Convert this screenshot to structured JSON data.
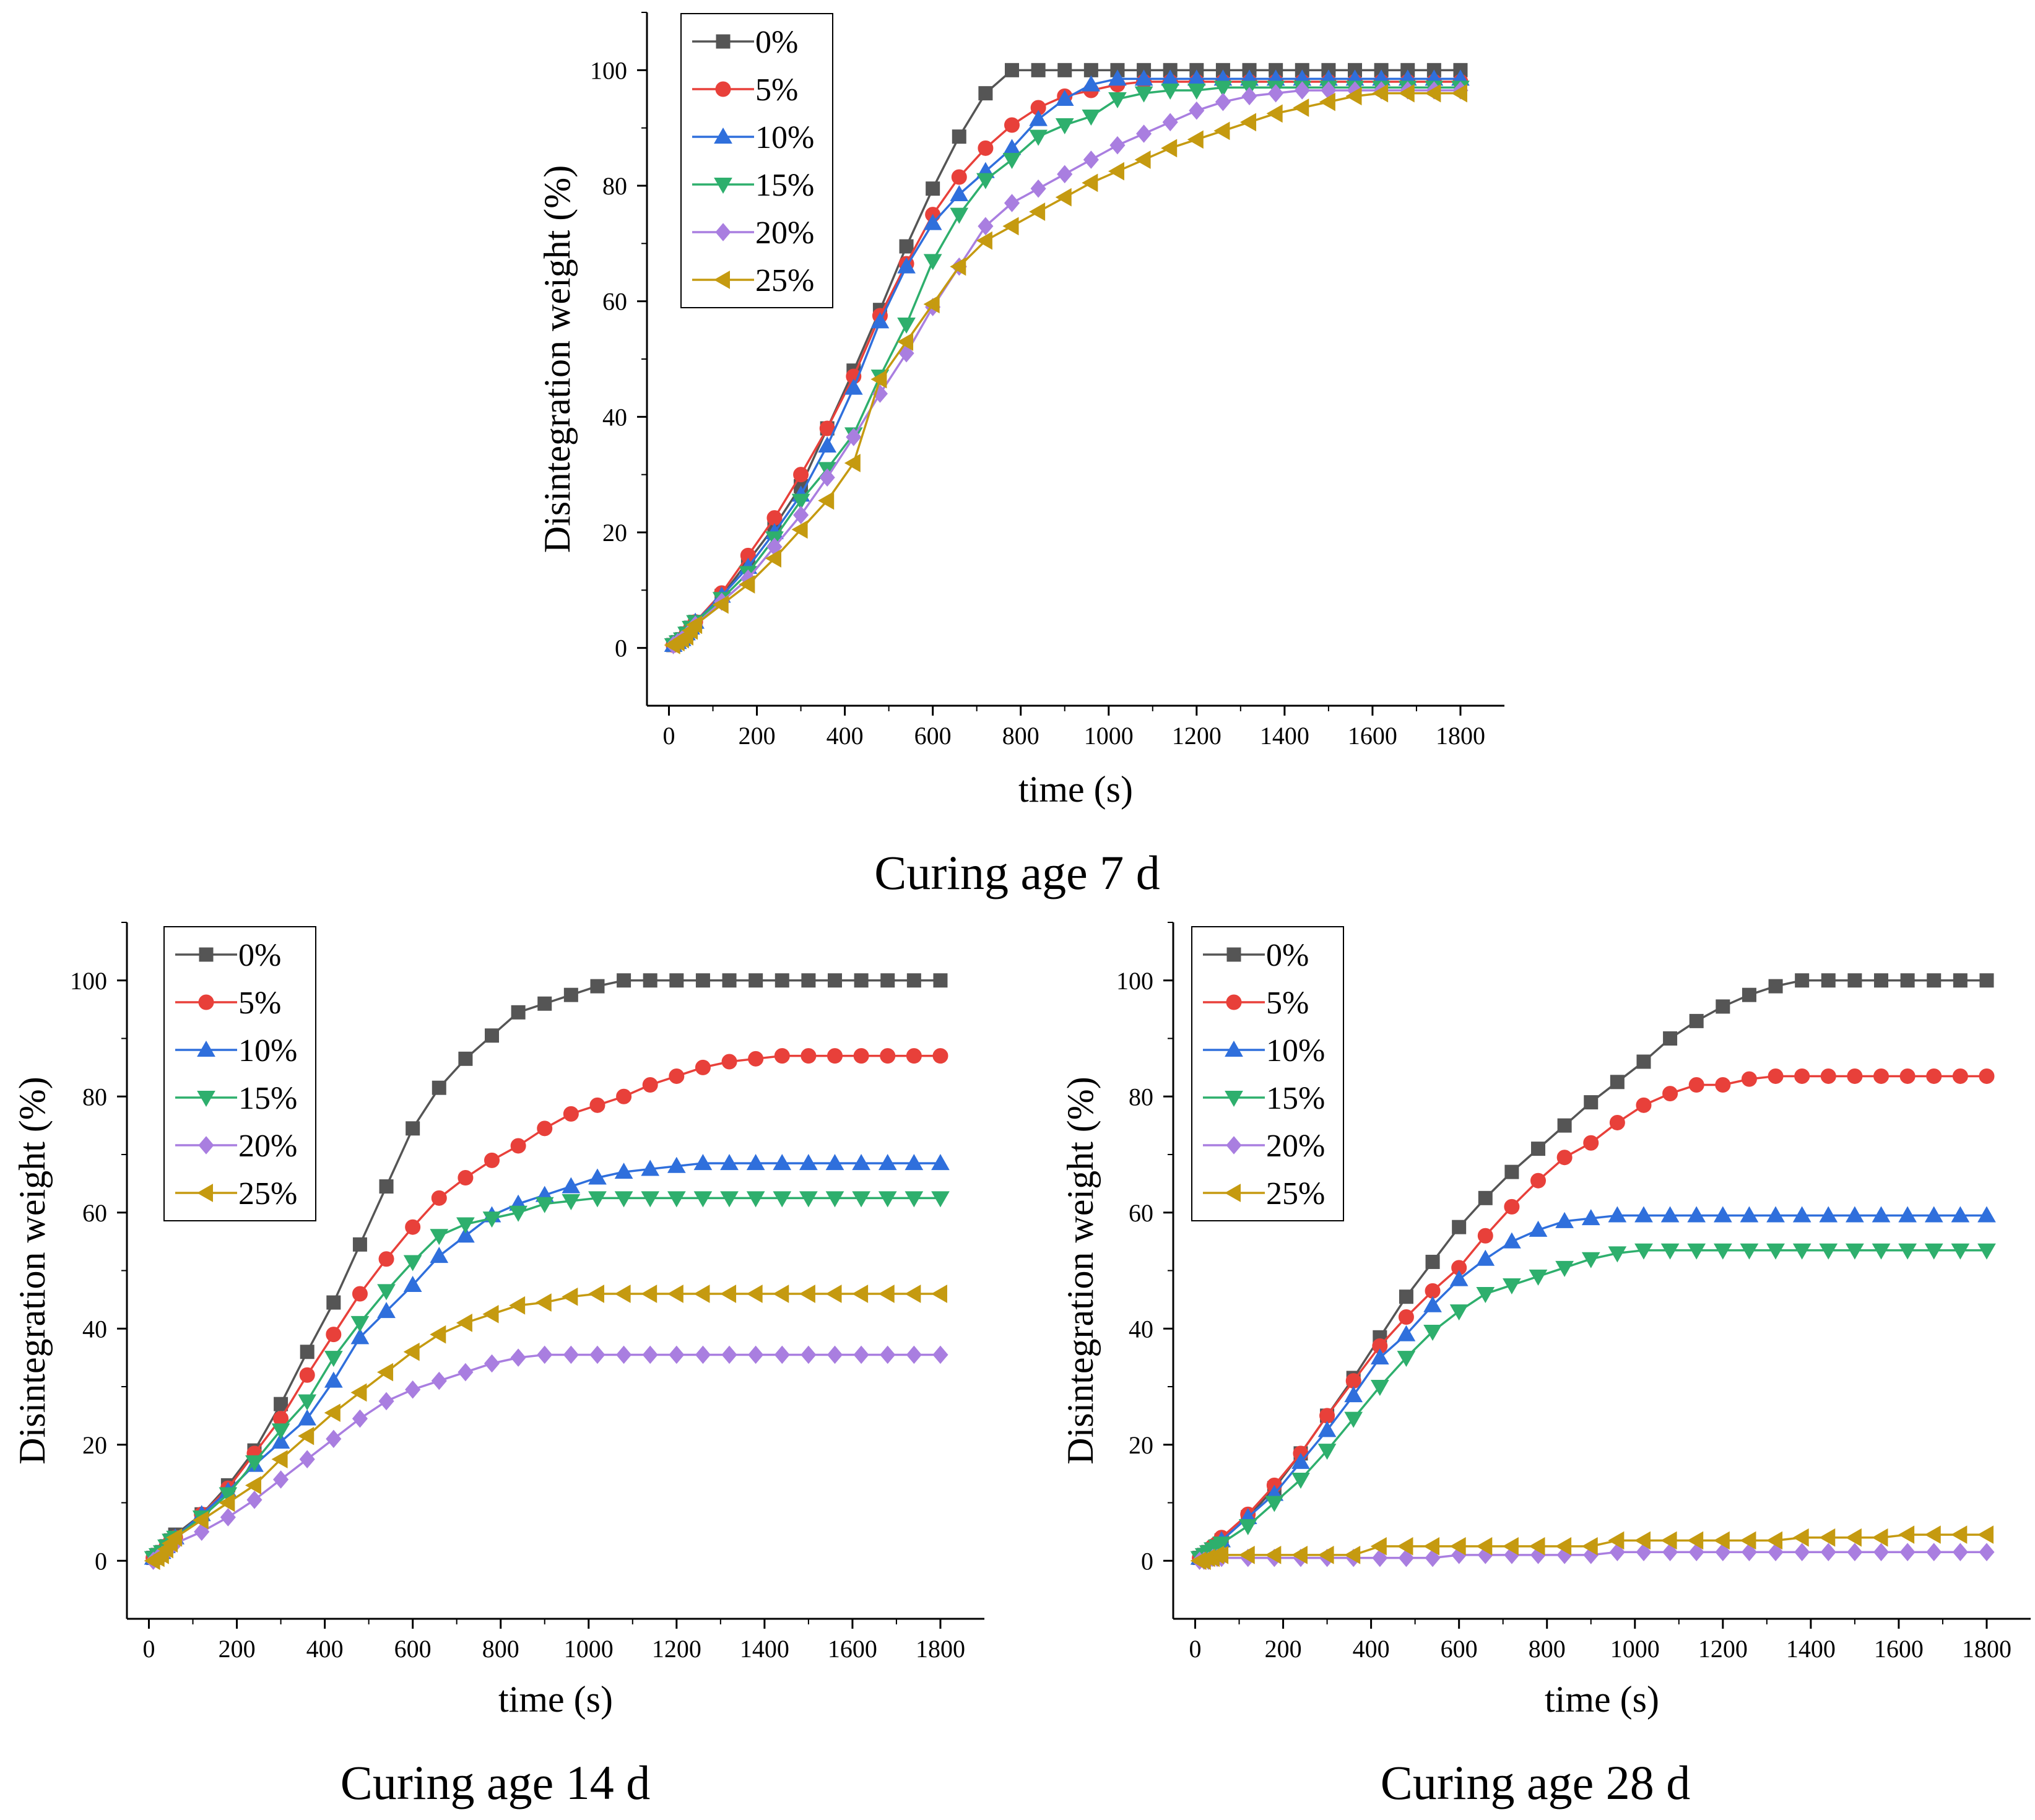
{
  "colors": {
    "0%": "#555555",
    "5%": "#e8403a",
    "10%": "#2f6fdc",
    "15%": "#2eaf6d",
    "20%": "#a97ee0",
    "25%": "#c59a10"
  },
  "chart_data": [
    {
      "type": "line",
      "caption": "Curing age 7 d",
      "xlabel": "time (s)",
      "ylabel": "Disintegration weight (%)",
      "xlim": [
        -50,
        1900
      ],
      "ylim": [
        -10,
        110
      ],
      "xticks": [
        0,
        200,
        400,
        600,
        800,
        1000,
        1200,
        1400,
        1600,
        1800
      ],
      "yticks": [
        0,
        20,
        40,
        60,
        80,
        100
      ],
      "x": [
        10,
        20,
        30,
        40,
        50,
        60,
        120,
        180,
        240,
        300,
        360,
        420,
        480,
        540,
        600,
        660,
        720,
        780,
        840,
        900,
        960,
        1020,
        1080,
        1140,
        1200,
        1260,
        1320,
        1380,
        1440,
        1500,
        1560,
        1620,
        1680,
        1740,
        1800
      ],
      "series": [
        {
          "name": "0%",
          "marker": "square",
          "values": [
            0.5,
            1,
            1.5,
            2.5,
            3.5,
            4.5,
            9,
            15,
            21,
            28,
            38,
            48,
            58.5,
            69.5,
            79.5,
            88.5,
            96,
            100,
            100,
            100,
            100,
            100,
            100,
            100,
            100,
            100,
            100,
            100,
            100,
            100,
            100,
            100,
            100,
            100,
            100
          ]
        },
        {
          "name": "5%",
          "marker": "circle",
          "values": [
            0.5,
            1,
            1.5,
            2.5,
            3.5,
            4.5,
            9.5,
            16,
            22.5,
            30,
            38,
            47,
            57.5,
            66.5,
            75,
            81.5,
            86.5,
            90.5,
            93.5,
            95.5,
            96.5,
            97.5,
            98,
            98,
            98,
            98,
            98,
            98,
            98,
            98,
            98,
            98,
            98,
            98,
            98
          ]
        },
        {
          "name": "10%",
          "marker": "triangle-up",
          "values": [
            0.5,
            1,
            1.5,
            2.5,
            3.5,
            4.5,
            9,
            14,
            20,
            26.5,
            35,
            45,
            56.5,
            66,
            73.5,
            78.5,
            82.5,
            86.5,
            91.5,
            95,
            97.5,
            98.5,
            98.5,
            98.5,
            98.5,
            98.5,
            98.5,
            98.5,
            98.5,
            98.5,
            98.5,
            98.5,
            98.5,
            98.5,
            98.5
          ]
        },
        {
          "name": "15%",
          "marker": "triangle-down",
          "values": [
            0.5,
            1,
            1.5,
            2.5,
            3.5,
            4.5,
            8.5,
            13,
            19,
            25.5,
            31,
            37,
            47,
            56,
            67,
            75,
            81,
            84.5,
            88.5,
            90.5,
            92,
            95,
            96,
            96.5,
            96.5,
            97,
            97,
            97,
            97,
            97,
            97,
            97,
            97,
            97,
            97
          ]
        },
        {
          "name": "20%",
          "marker": "diamond",
          "values": [
            0.5,
            1,
            1.5,
            2,
            3,
            4,
            8,
            12,
            17.5,
            23,
            29.5,
            36.5,
            44,
            51,
            59,
            66,
            73,
            77,
            79.5,
            82,
            84.5,
            87,
            89,
            91,
            93,
            94.5,
            95.5,
            96,
            96.5,
            96.5,
            96.5,
            96.5,
            96.5,
            96.5,
            96.5
          ]
        },
        {
          "name": "25%",
          "marker": "triangle-left",
          "values": [
            0.5,
            1,
            1.5,
            2,
            3,
            4,
            7.5,
            11,
            15.5,
            20.5,
            25.5,
            32,
            46.5,
            53,
            59.5,
            66,
            70.5,
            73,
            75.5,
            78,
            80.5,
            82.5,
            84.5,
            86.5,
            88,
            89.5,
            91,
            92.5,
            93.5,
            94.5,
            95.5,
            96,
            96,
            96,
            96
          ]
        }
      ]
    },
    {
      "type": "line",
      "caption": "Curing age 14 d",
      "xlabel": "time (s)",
      "ylabel": "Disintegration weight (%)",
      "xlim": [
        -50,
        1900
      ],
      "ylim": [
        -10,
        110
      ],
      "xticks": [
        0,
        200,
        400,
        600,
        800,
        1000,
        1200,
        1400,
        1600,
        1800
      ],
      "yticks": [
        0,
        20,
        40,
        60,
        80,
        100
      ],
      "x": [
        10,
        20,
        30,
        40,
        50,
        60,
        120,
        180,
        240,
        300,
        360,
        420,
        480,
        540,
        600,
        660,
        720,
        780,
        840,
        900,
        960,
        1020,
        1080,
        1140,
        1200,
        1260,
        1320,
        1380,
        1440,
        1500,
        1560,
        1620,
        1680,
        1740,
        1800
      ],
      "series": [
        {
          "name": "0%",
          "marker": "square",
          "values": [
            0.5,
            1,
            1.5,
            2.5,
            3.5,
            4.5,
            8,
            13,
            19,
            27,
            36,
            44.5,
            54.5,
            64.5,
            74.5,
            81.5,
            86.5,
            90.5,
            94.5,
            96,
            97.5,
            99,
            100,
            100,
            100,
            100,
            100,
            100,
            100,
            100,
            100,
            100,
            100,
            100,
            100
          ]
        },
        {
          "name": "5%",
          "marker": "circle",
          "values": [
            0.5,
            1,
            1.5,
            2.5,
            3.5,
            4,
            8,
            12.5,
            18.5,
            24.5,
            32,
            39,
            46,
            52,
            57.5,
            62.5,
            66,
            69,
            71.5,
            74.5,
            77,
            78.5,
            80,
            82,
            83.5,
            85,
            86,
            86.5,
            87,
            87,
            87,
            87,
            87,
            87,
            87
          ]
        },
        {
          "name": "10%",
          "marker": "triangle-up",
          "values": [
            0.5,
            1,
            1.5,
            2.5,
            3.5,
            4,
            8,
            12,
            16.5,
            20.5,
            24.5,
            31,
            38.5,
            43,
            47.5,
            52.5,
            56,
            59.5,
            61.5,
            63,
            64.5,
            66,
            67,
            67.5,
            68,
            68.5,
            68.5,
            68.5,
            68.5,
            68.5,
            68.5,
            68.5,
            68.5,
            68.5,
            68.5
          ]
        },
        {
          "name": "15%",
          "marker": "triangle-down",
          "values": [
            0.5,
            1,
            1.5,
            2.5,
            3.5,
            4,
            7.5,
            11.5,
            17,
            22.5,
            27.5,
            35,
            41,
            46.5,
            51.5,
            56,
            58,
            59,
            60,
            61.5,
            62,
            62.5,
            62.5,
            62.5,
            62.5,
            62.5,
            62.5,
            62.5,
            62.5,
            62.5,
            62.5,
            62.5,
            62.5,
            62.5,
            62.5
          ]
        },
        {
          "name": "20%",
          "marker": "diamond",
          "values": [
            0,
            0.5,
            1,
            1.5,
            2.5,
            3,
            5,
            7.5,
            10.5,
            14,
            17.5,
            21,
            24.5,
            27.5,
            29.5,
            31,
            32.5,
            34,
            35,
            35.5,
            35.5,
            35.5,
            35.5,
            35.5,
            35.5,
            35.5,
            35.5,
            35.5,
            35.5,
            35.5,
            35.5,
            35.5,
            35.5,
            35.5,
            35.5
          ]
        },
        {
          "name": "25%",
          "marker": "triangle-left",
          "values": [
            0,
            0.5,
            1,
            2,
            3,
            4,
            7,
            10,
            13,
            17.5,
            21.5,
            25.5,
            29,
            32.5,
            36,
            39,
            41,
            42.5,
            44,
            44.5,
            45.5,
            46,
            46,
            46,
            46,
            46,
            46,
            46,
            46,
            46,
            46,
            46,
            46,
            46,
            46
          ]
        }
      ]
    },
    {
      "type": "line",
      "caption": "Curing age 28 d",
      "xlabel": "time (s)",
      "ylabel": "Disintegration weight (%)",
      "xlim": [
        -50,
        1900
      ],
      "ylim": [
        -10,
        110
      ],
      "xticks": [
        0,
        200,
        400,
        600,
        800,
        1000,
        1200,
        1400,
        1600,
        1800
      ],
      "yticks": [
        0,
        20,
        40,
        60,
        80,
        100
      ],
      "x": [
        10,
        20,
        30,
        40,
        50,
        60,
        120,
        180,
        240,
        300,
        360,
        420,
        480,
        540,
        600,
        660,
        720,
        780,
        840,
        900,
        960,
        1020,
        1080,
        1140,
        1200,
        1260,
        1320,
        1380,
        1440,
        1500,
        1560,
        1620,
        1680,
        1740,
        1800
      ],
      "series": [
        {
          "name": "0%",
          "marker": "square",
          "values": [
            0.5,
            1,
            1.5,
            2,
            2.5,
            3.5,
            7.5,
            12.5,
            18.5,
            25,
            31.5,
            38.5,
            45.5,
            51.5,
            57.5,
            62.5,
            67,
            71,
            75,
            79,
            82.5,
            86,
            90,
            93,
            95.5,
            97.5,
            99,
            100,
            100,
            100,
            100,
            100,
            100,
            100,
            100
          ]
        },
        {
          "name": "5%",
          "marker": "circle",
          "values": [
            0.5,
            1,
            1.5,
            2.5,
            3,
            4,
            8,
            13,
            18.5,
            25,
            31,
            37,
            42,
            46.5,
            50.5,
            56,
            61,
            65.5,
            69.5,
            72,
            75.5,
            78.5,
            80.5,
            82,
            82,
            83,
            83.5,
            83.5,
            83.5,
            83.5,
            83.5,
            83.5,
            83.5,
            83.5,
            83.5
          ]
        },
        {
          "name": "10%",
          "marker": "triangle-up",
          "values": [
            0.5,
            1,
            1.5,
            2,
            2.5,
            3.5,
            7.5,
            11.5,
            17,
            22.5,
            28.5,
            35,
            39,
            44,
            48.5,
            52,
            55,
            57,
            58.5,
            59,
            59.5,
            59.5,
            59.5,
            59.5,
            59.5,
            59.5,
            59.5,
            59.5,
            59.5,
            59.5,
            59.5,
            59.5,
            59.5,
            59.5,
            59.5
          ]
        },
        {
          "name": "15%",
          "marker": "triangle-down",
          "values": [
            0.5,
            1,
            1.5,
            2,
            2.5,
            3,
            6,
            10,
            14,
            19,
            24.5,
            30,
            35,
            39.5,
            43,
            46,
            47.5,
            49,
            50.5,
            52,
            53,
            53.5,
            53.5,
            53.5,
            53.5,
            53.5,
            53.5,
            53.5,
            53.5,
            53.5,
            53.5,
            53.5,
            53.5,
            53.5,
            53.5
          ]
        },
        {
          "name": "20%",
          "marker": "diamond",
          "values": [
            0,
            0,
            0,
            0.5,
            0.5,
            0.5,
            0.5,
            0.5,
            0.5,
            0.5,
            0.5,
            0.5,
            0.5,
            0.5,
            1,
            1,
            1,
            1,
            1,
            1,
            1.5,
            1.5,
            1.5,
            1.5,
            1.5,
            1.5,
            1.5,
            1.5,
            1.5,
            1.5,
            1.5,
            1.5,
            1.5,
            1.5,
            1.5
          ]
        },
        {
          "name": "25%",
          "marker": "triangle-left",
          "values": [
            0,
            0,
            0.5,
            0.5,
            1,
            1,
            1,
            1,
            1,
            1,
            1,
            2.5,
            2.5,
            2.5,
            2.5,
            2.5,
            2.5,
            2.5,
            2.5,
            2.5,
            3.5,
            3.5,
            3.5,
            3.5,
            3.5,
            3.5,
            3.5,
            4,
            4,
            4,
            4,
            4.5,
            4.5,
            4.5,
            4.5
          ]
        }
      ]
    }
  ]
}
